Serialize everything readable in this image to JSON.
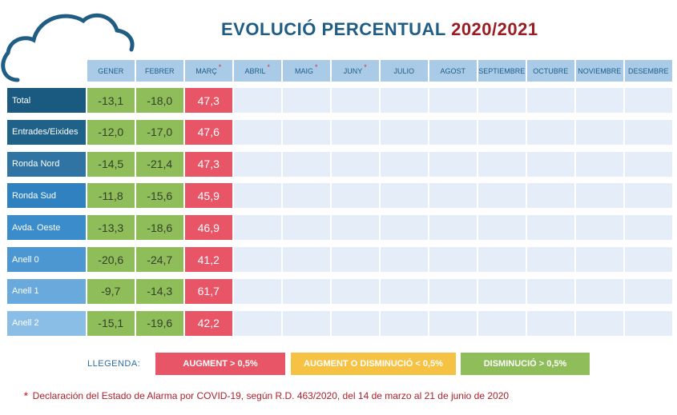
{
  "title": {
    "main": "EVOLUCIÓ PERCENTUAL",
    "year": "2020/2021"
  },
  "months": [
    {
      "label": "GENER",
      "star": ""
    },
    {
      "label": "FEBRER",
      "star": ""
    },
    {
      "label": "MARÇ",
      "star": "*"
    },
    {
      "label": "ABRIL",
      "star": "*"
    },
    {
      "label": "MAIG",
      "star": "*"
    },
    {
      "label": "JUNY",
      "star": "*"
    },
    {
      "label": "JULIO",
      "star": ""
    },
    {
      "label": "AGOST",
      "star": ""
    },
    {
      "label": "SEPTIEMBRE",
      "star": ""
    },
    {
      "label": "OCTUBRE",
      "star": ""
    },
    {
      "label": "NOVIEMBRE",
      "star": ""
    },
    {
      "label": "DESEMBRE",
      "star": ""
    }
  ],
  "rows": [
    {
      "label": "Total",
      "color": "#1b5a80",
      "values": [
        "-13,1",
        "-18,0",
        "47,3"
      ]
    },
    {
      "label": "Entrades/Eixides",
      "color": "#1e6189",
      "values": [
        "-12,0",
        "-17,0",
        "47,6"
      ]
    },
    {
      "label": "Ronda Nord",
      "color": "#2f74a3",
      "values": [
        "-14,5",
        "-21,4",
        "47,3"
      ]
    },
    {
      "label": "Ronda Sud",
      "color": "#2f82bf",
      "values": [
        "-11,8",
        "-15,6",
        "45,9"
      ]
    },
    {
      "label": "Avda. Oeste",
      "color": "#3a8ccb",
      "values": [
        "-13,3",
        "-18,6",
        "46,9"
      ]
    },
    {
      "label": "Anell 0",
      "color": "#4c97d1",
      "values": [
        "-20,6",
        "-24,7",
        "41,2"
      ]
    },
    {
      "label": "Anell 1",
      "color": "#6aa9dc",
      "values": [
        "-9,7",
        "-14,3",
        "61,7"
      ]
    },
    {
      "label": "Anell 2",
      "color": "#8bbee6",
      "values": [
        "-15,1",
        "-19,6",
        "42,2"
      ]
    }
  ],
  "legend": {
    "label": "LLEGENDA:",
    "items": [
      {
        "text": "AUGMENT  > 0,5%",
        "color": "#e85567"
      },
      {
        "text": "AUGMENT O DISMINUCIÓ  < 0,5%",
        "color": "#f6c244"
      },
      {
        "text": "DISMINUCIÓ  > 0,5%",
        "color": "#8ebd5a"
      }
    ]
  },
  "footnote": {
    "star": "*",
    "text": "Declaración del Estado de Alarma por COVID-19, según R.D. 463/2020, del 14 de marzo al 21 de junio de 2020"
  }
}
